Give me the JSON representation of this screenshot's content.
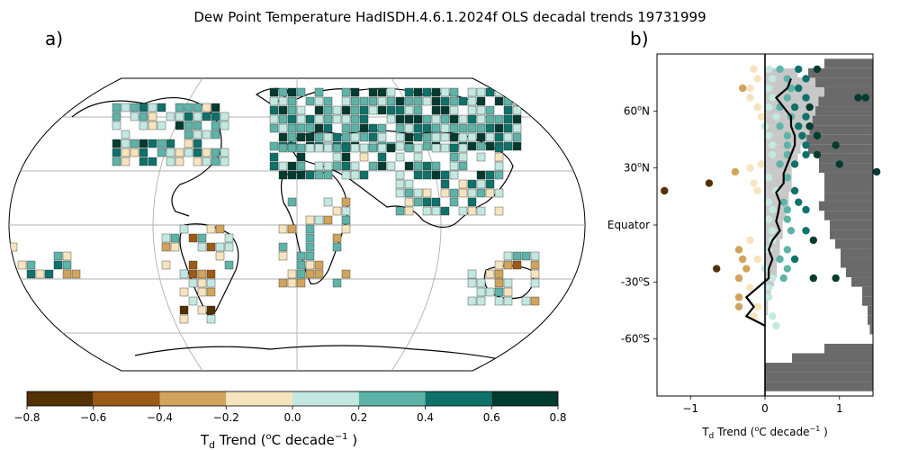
{
  "figure_title": "Dew Point Temperature HadISDH.4.6.1.2024f OLS decadal trends 19731999",
  "panel_a": {
    "label": "a)",
    "colorbar": {
      "label_prefix": "T",
      "label_sub": "d",
      "label_mid": " Trend (",
      "label_sup_o": "o",
      "label_unit": "C decade",
      "label_sup_exp": "−1",
      "label_end": " )",
      "ticks": [
        "−0.8",
        "−0.6",
        "−0.4",
        "−0.2",
        "0.0",
        "0.2",
        "0.4",
        "0.6",
        "0.8"
      ]
    }
  },
  "chart_data": {
    "type": "scatter",
    "panel_label": "b)",
    "xlabel_prefix": "T",
    "xlabel_sub": "d",
    "xlabel_mid": " Trend (",
    "xlabel_sup_o": "o",
    "xlabel_unit": "C decade",
    "xlabel_sup_exp": "−1",
    "xlabel_end": " )",
    "xlim": [
      -1.45,
      1.45
    ],
    "ylim": [
      -90,
      90
    ],
    "xticks": [
      -1,
      0,
      1
    ],
    "xtick_labels": [
      "−1",
      "0",
      "1"
    ],
    "ytick_labels": [
      {
        "lat": 60,
        "deg": "60",
        "sup": "o",
        "dir": "N"
      },
      {
        "lat": 30,
        "deg": "30",
        "sup": "o",
        "dir": "N"
      },
      {
        "lat": 0,
        "deg": "Equator",
        "sup": "",
        "dir": ""
      },
      {
        "lat": -30,
        "deg": "-30",
        "sup": "o",
        "dir": "S"
      },
      {
        "lat": -60,
        "deg": "-60",
        "sup": "o",
        "dir": "S"
      }
    ],
    "colorbar_bins": [
      {
        "range": [
          -0.8,
          -0.6
        ],
        "color": "#543005"
      },
      {
        "range": [
          -0.6,
          -0.4
        ],
        "color": "#9c5a17"
      },
      {
        "range": [
          -0.4,
          -0.2
        ],
        "color": "#d0a45c"
      },
      {
        "range": [
          -0.2,
          0.0
        ],
        "color": "#f5e4bd"
      },
      {
        "range": [
          0.0,
          0.2
        ],
        "color": "#c3e8e2"
      },
      {
        "range": [
          0.2,
          0.4
        ],
        "color": "#5eb3a8"
      },
      {
        "range": [
          0.4,
          0.6
        ],
        "color": "#0e726a"
      },
      {
        "range": [
          0.6,
          0.8
        ],
        "color": "#023b30"
      }
    ],
    "land_fraction_bars_light": [
      {
        "lat": 80,
        "frac": 0.55
      },
      {
        "lat": 75,
        "frac": 0.85
      },
      {
        "lat": 70,
        "frac": 1.0
      },
      {
        "lat": 65,
        "frac": 0.9
      },
      {
        "lat": 60,
        "frac": 0.85
      },
      {
        "lat": 55,
        "frac": 0.8
      },
      {
        "lat": 50,
        "frac": 0.75
      },
      {
        "lat": 45,
        "frac": 0.7
      },
      {
        "lat": 40,
        "frac": 0.6
      },
      {
        "lat": 35,
        "frac": 0.55
      },
      {
        "lat": 30,
        "frac": 0.45
      },
      {
        "lat": 25,
        "frac": 0.45
      },
      {
        "lat": 20,
        "frac": 0.45
      },
      {
        "lat": 15,
        "frac": 0.4
      },
      {
        "lat": 10,
        "frac": 0.4
      },
      {
        "lat": 5,
        "frac": 0.35
      },
      {
        "lat": 0,
        "frac": 0.3
      },
      {
        "lat": -5,
        "frac": 0.3
      },
      {
        "lat": -10,
        "frac": 0.25
      },
      {
        "lat": -15,
        "frac": 0.25
      },
      {
        "lat": -20,
        "frac": 0.2
      },
      {
        "lat": -25,
        "frac": 0.2
      },
      {
        "lat": -30,
        "frac": 0.15
      },
      {
        "lat": -35,
        "frac": 0.1
      },
      {
        "lat": -40,
        "frac": 0.05
      },
      {
        "lat": -45,
        "frac": 0.05
      },
      {
        "lat": -50,
        "frac": 0.02
      }
    ],
    "land_fraction_bars_dark": [
      {
        "lat": 85,
        "frac": 0.45
      },
      {
        "lat": 80,
        "frac": 0.6
      },
      {
        "lat": 75,
        "frac": 0.85
      },
      {
        "lat": 70,
        "frac": 1.0
      },
      {
        "lat": 65,
        "frac": 0.95
      },
      {
        "lat": 60,
        "frac": 0.85
      },
      {
        "lat": 55,
        "frac": 0.8
      },
      {
        "lat": 50,
        "frac": 0.75
      },
      {
        "lat": 45,
        "frac": 0.7
      },
      {
        "lat": 40,
        "frac": 0.6
      },
      {
        "lat": 35,
        "frac": 0.5
      },
      {
        "lat": 30,
        "frac": 0.5
      },
      {
        "lat": 25,
        "frac": 0.45
      },
      {
        "lat": 20,
        "frac": 0.45
      },
      {
        "lat": 15,
        "frac": 0.45
      },
      {
        "lat": 10,
        "frac": 0.5
      },
      {
        "lat": 5,
        "frac": 0.45
      },
      {
        "lat": 0,
        "frac": 0.4
      },
      {
        "lat": -5,
        "frac": 0.4
      },
      {
        "lat": -10,
        "frac": 0.35
      },
      {
        "lat": -15,
        "frac": 0.3
      },
      {
        "lat": -20,
        "frac": 0.3
      },
      {
        "lat": -25,
        "frac": 0.25
      },
      {
        "lat": -30,
        "frac": 0.2
      },
      {
        "lat": -35,
        "frac": 0.1
      },
      {
        "lat": -40,
        "frac": 0.1
      },
      {
        "lat": -45,
        "frac": 0.05
      },
      {
        "lat": -50,
        "frac": 0.05
      },
      {
        "lat": -55,
        "frac": 0.03
      },
      {
        "lat": -65,
        "frac": 0.45
      },
      {
        "lat": -70,
        "frac": 0.75
      },
      {
        "lat": -75,
        "frac": 1.0
      },
      {
        "lat": -80,
        "frac": 1.0
      },
      {
        "lat": -85,
        "frac": 1.0
      }
    ],
    "zonal_mean_line": [
      {
        "lat": 77,
        "x": 0.35
      },
      {
        "lat": 72,
        "x": 0.3
      },
      {
        "lat": 67,
        "x": 0.15
      },
      {
        "lat": 62,
        "x": 0.25
      },
      {
        "lat": 57,
        "x": 0.35
      },
      {
        "lat": 52,
        "x": 0.35
      },
      {
        "lat": 47,
        "x": 0.4
      },
      {
        "lat": 42,
        "x": 0.4
      },
      {
        "lat": 37,
        "x": 0.35
      },
      {
        "lat": 32,
        "x": 0.3
      },
      {
        "lat": 27,
        "x": 0.25
      },
      {
        "lat": 22,
        "x": 0.25
      },
      {
        "lat": 17,
        "x": 0.15
      },
      {
        "lat": 12,
        "x": 0.2
      },
      {
        "lat": 7,
        "x": 0.18
      },
      {
        "lat": 2,
        "x": 0.15
      },
      {
        "lat": -3,
        "x": 0.2
      },
      {
        "lat": -8,
        "x": 0.1
      },
      {
        "lat": -13,
        "x": 0.05
      },
      {
        "lat": -18,
        "x": 0.1
      },
      {
        "lat": -23,
        "x": 0.05
      },
      {
        "lat": -28,
        "x": 0.05
      },
      {
        "lat": -33,
        "x": -0.1
      },
      {
        "lat": -38,
        "x": -0.25
      },
      {
        "lat": -43,
        "x": -0.15
      },
      {
        "lat": -48,
        "x": -0.25
      },
      {
        "lat": -53,
        "x": 0.0
      }
    ],
    "points": [
      {
        "lat": 82,
        "x": -0.15
      },
      {
        "lat": 82,
        "x": 0.05
      },
      {
        "lat": 82,
        "x": 0.2
      },
      {
        "lat": 82,
        "x": 0.45
      },
      {
        "lat": 82,
        "x": 0.7
      },
      {
        "lat": 77,
        "x": -0.1
      },
      {
        "lat": 77,
        "x": 0.1
      },
      {
        "lat": 77,
        "x": 0.3
      },
      {
        "lat": 77,
        "x": 0.55
      },
      {
        "lat": 72,
        "x": -0.3
      },
      {
        "lat": 72,
        "x": -0.2
      },
      {
        "lat": 72,
        "x": 0.05
      },
      {
        "lat": 72,
        "x": 0.35
      },
      {
        "lat": 72,
        "x": 0.45
      },
      {
        "lat": 67,
        "x": -0.2
      },
      {
        "lat": 67,
        "x": 0.1
      },
      {
        "lat": 67,
        "x": 0.3
      },
      {
        "lat": 67,
        "x": 0.55
      },
      {
        "lat": 67,
        "x": 1.35
      },
      {
        "lat": 67,
        "x": 1.25
      },
      {
        "lat": 62,
        "x": -0.1
      },
      {
        "lat": 62,
        "x": 0.05
      },
      {
        "lat": 62,
        "x": 0.2
      },
      {
        "lat": 62,
        "x": 0.4
      },
      {
        "lat": 62,
        "x": 0.6
      },
      {
        "lat": 57,
        "x": -0.05
      },
      {
        "lat": 57,
        "x": 0.15
      },
      {
        "lat": 57,
        "x": 0.35
      },
      {
        "lat": 57,
        "x": 0.55
      },
      {
        "lat": 52,
        "x": 0.0
      },
      {
        "lat": 52,
        "x": 0.2
      },
      {
        "lat": 52,
        "x": 0.45
      },
      {
        "lat": 52,
        "x": 0.6
      },
      {
        "lat": 47,
        "x": 0.05
      },
      {
        "lat": 47,
        "x": 0.3
      },
      {
        "lat": 47,
        "x": 0.5
      },
      {
        "lat": 47,
        "x": 0.7
      },
      {
        "lat": 42,
        "x": 0.1
      },
      {
        "lat": 42,
        "x": 0.3
      },
      {
        "lat": 42,
        "x": 0.55
      },
      {
        "lat": 42,
        "x": 0.95
      },
      {
        "lat": 37,
        "x": 0.1
      },
      {
        "lat": 37,
        "x": 0.3
      },
      {
        "lat": 37,
        "x": 0.55
      },
      {
        "lat": 37,
        "x": 0.7
      },
      {
        "lat": 32,
        "x": -0.05
      },
      {
        "lat": 32,
        "x": 0.2
      },
      {
        "lat": 32,
        "x": 0.4
      },
      {
        "lat": 32,
        "x": 1.0
      },
      {
        "lat": 30,
        "x": -0.2
      },
      {
        "lat": 28,
        "x": -0.4
      },
      {
        "lat": 28,
        "x": 1.5
      },
      {
        "lat": 25,
        "x": 0.05
      },
      {
        "lat": 25,
        "x": 0.3
      },
      {
        "lat": 22,
        "x": -0.15
      },
      {
        "lat": 22,
        "x": -0.75
      },
      {
        "lat": 18,
        "x": -0.1
      },
      {
        "lat": 18,
        "x": 0.15
      },
      {
        "lat": 18,
        "x": 0.4
      },
      {
        "lat": 18,
        "x": -1.35
      },
      {
        "lat": 12,
        "x": 0.05
      },
      {
        "lat": 12,
        "x": 0.25
      },
      {
        "lat": 12,
        "x": 0.45
      },
      {
        "lat": 8,
        "x": 0.1
      },
      {
        "lat": 8,
        "x": 0.3
      },
      {
        "lat": 8,
        "x": 0.55
      },
      {
        "lat": 3,
        "x": 0.05
      },
      {
        "lat": 3,
        "x": 0.3
      },
      {
        "lat": -3,
        "x": 0.1
      },
      {
        "lat": -3,
        "x": 0.35
      },
      {
        "lat": -3,
        "x": 0.55
      },
      {
        "lat": -8,
        "x": -0.2
      },
      {
        "lat": -8,
        "x": 0.1
      },
      {
        "lat": -8,
        "x": 0.65
      },
      {
        "lat": -13,
        "x": -0.35
      },
      {
        "lat": -13,
        "x": 0.05
      },
      {
        "lat": -13,
        "x": 0.3
      },
      {
        "lat": -18,
        "x": -0.3
      },
      {
        "lat": -18,
        "x": -0.1
      },
      {
        "lat": -18,
        "x": 0.2
      },
      {
        "lat": -18,
        "x": 0.4
      },
      {
        "lat": -23,
        "x": -0.25
      },
      {
        "lat": -23,
        "x": 0.0
      },
      {
        "lat": -23,
        "x": 0.3
      },
      {
        "lat": -23,
        "x": -0.65
      },
      {
        "lat": -28,
        "x": -0.35
      },
      {
        "lat": -28,
        "x": 0.1
      },
      {
        "lat": -28,
        "x": 0.25
      },
      {
        "lat": -28,
        "x": 0.65
      },
      {
        "lat": -28,
        "x": 0.95
      },
      {
        "lat": -33,
        "x": -0.2
      },
      {
        "lat": -33,
        "x": 0.05
      },
      {
        "lat": -38,
        "x": -0.35
      },
      {
        "lat": -38,
        "x": 0.05
      },
      {
        "lat": -43,
        "x": -0.35
      },
      {
        "lat": -43,
        "x": -0.1
      },
      {
        "lat": -48,
        "x": -0.15
      },
      {
        "lat": -48,
        "x": 0.1
      },
      {
        "lat": -53,
        "x": 0.15
      }
    ]
  }
}
